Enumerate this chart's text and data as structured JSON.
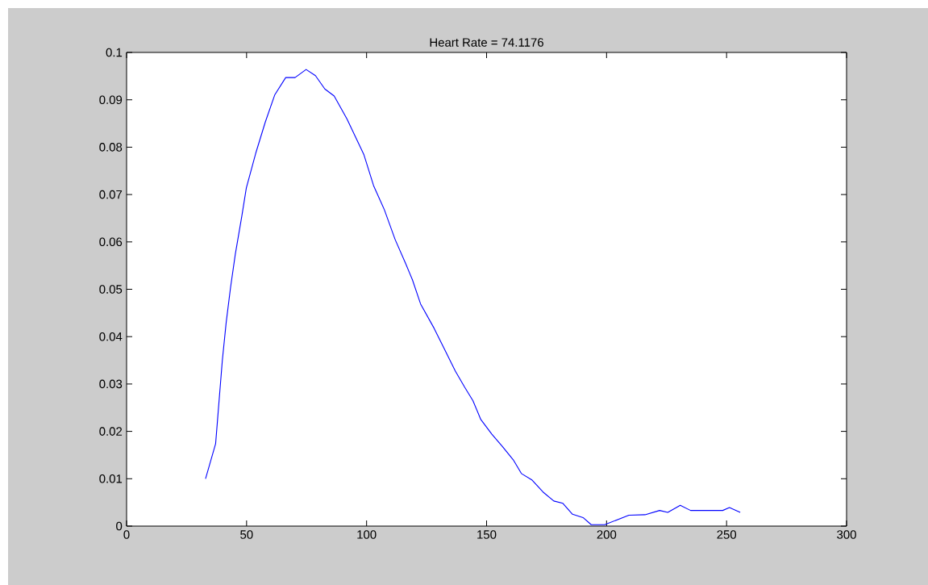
{
  "chart_data": {
    "type": "line",
    "title": "Heart Rate = 74.1176",
    "xlim": [
      0,
      300
    ],
    "ylim": [
      0,
      0.1
    ],
    "xticks": [
      0,
      50,
      100,
      150,
      200,
      250,
      300
    ],
    "yticks": [
      0,
      0.01,
      0.02,
      0.03,
      0.04,
      0.05,
      0.06,
      0.07,
      0.08,
      0.09,
      0.1
    ],
    "grid": false,
    "marker": "none",
    "line_style": "solid",
    "series": [
      {
        "color": "#0000ff",
        "x": [
          32.9,
          37.1,
          38.1,
          39.9,
          41.5,
          43.3,
          45.3,
          48.0,
          49.9,
          53.8,
          57.8,
          61.7,
          66.3,
          70.2,
          74.8,
          78.7,
          82.6,
          86.5,
          91.8,
          98.9,
          102.9,
          107.4,
          111.9,
          116.3,
          119.1,
          122.5,
          128.1,
          132.5,
          137.0,
          140.9,
          144.3,
          147.6,
          152.2,
          156.6,
          161.1,
          164.5,
          169.0,
          173.5,
          178.0,
          181.8,
          185.8,
          190.2,
          193.6,
          199.2,
          209.3,
          216.0,
          222.1,
          225.5,
          230.7,
          235.0,
          248.4,
          251.2,
          255.7
        ],
        "values": [
          0.01,
          0.0174,
          0.0237,
          0.035,
          0.043,
          0.0503,
          0.0574,
          0.0654,
          0.0714,
          0.0787,
          0.0853,
          0.091,
          0.0947,
          0.0947,
          0.0964,
          0.0951,
          0.0923,
          0.0908,
          0.086,
          0.0784,
          0.0719,
          0.0668,
          0.0605,
          0.0554,
          0.052,
          0.0469,
          0.0418,
          0.0373,
          0.0327,
          0.0293,
          0.0265,
          0.0225,
          0.0194,
          0.0168,
          0.014,
          0.0111,
          0.0097,
          0.0072,
          0.0053,
          0.0048,
          0.0025,
          0.0018,
          0.0003,
          0.0003,
          0.0023,
          0.0024,
          0.0033,
          0.0029,
          0.0044,
          0.0033,
          0.0033,
          0.0039,
          0.0029
        ]
      }
    ]
  }
}
